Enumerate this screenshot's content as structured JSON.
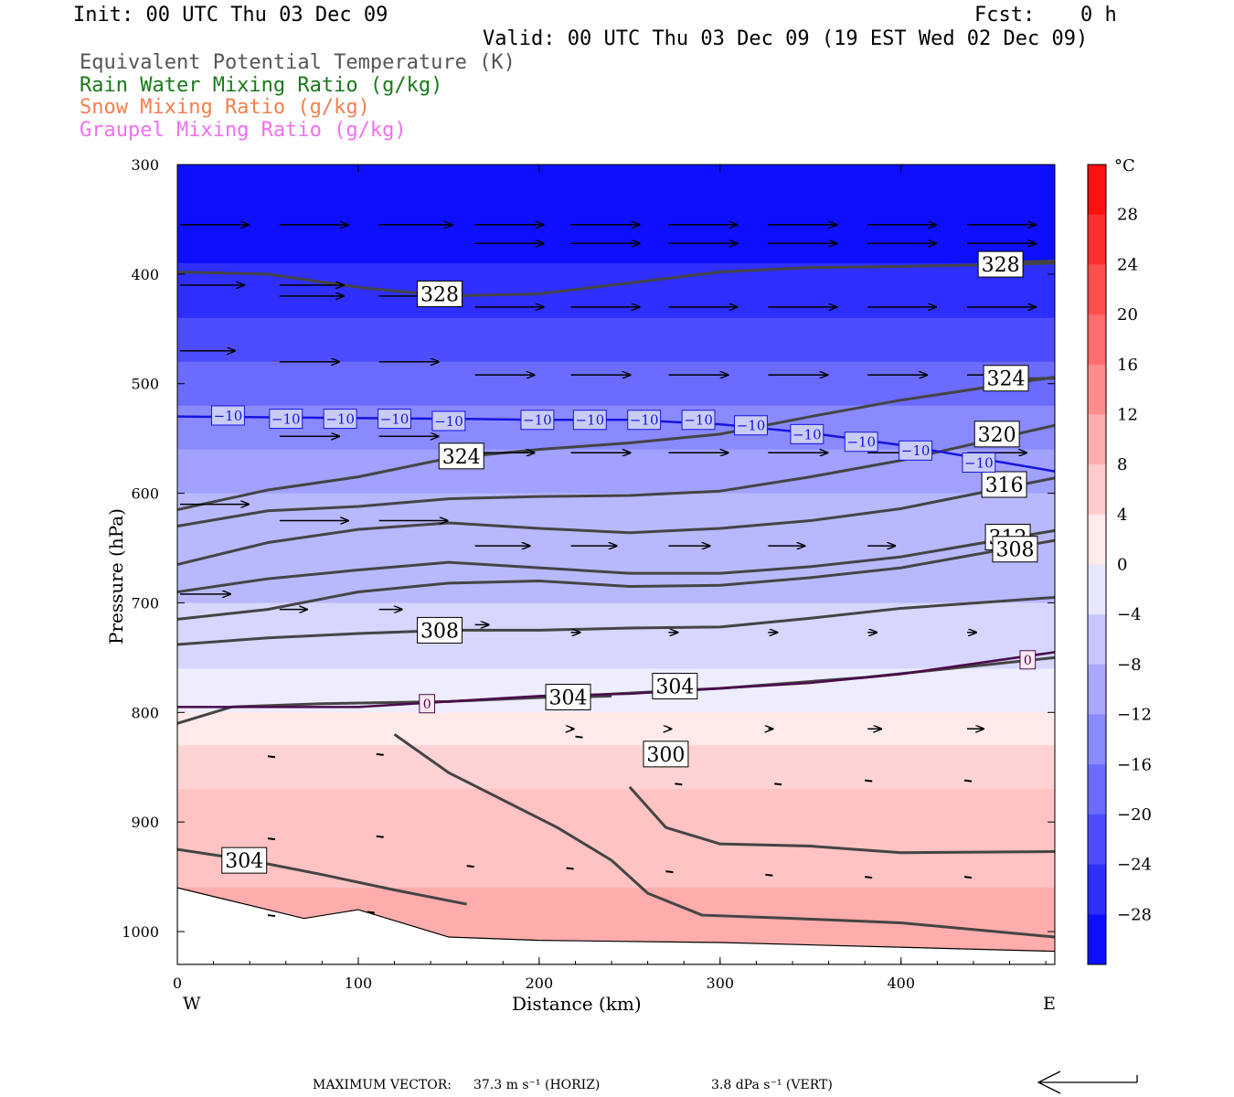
{
  "header": {
    "init": "Init: 00 UTC Thu 03 Dec 09",
    "fcst_label": "Fcst:",
    "fcst_value": "0 h",
    "valid": "Valid: 00 UTC Thu 03 Dec 09 (19 EST Wed 02 Dec 09)"
  },
  "legend": [
    {
      "label": "Equivalent Potential Temperature (K)",
      "color": "#555555"
    },
    {
      "label": "Rain Water Mixing Ratio (g/kg)",
      "color": "#1a7a1a"
    },
    {
      "label": "Snow Mixing Ratio (g/kg)",
      "color": "#f08050"
    },
    {
      "label": "Graupel Mixing Ratio (g/kg)",
      "color": "#f070f0"
    }
  ],
  "chart_data": {
    "type": "cross-section",
    "xlabel": "Distance (km)",
    "ylabel": "Pressure (hPa)",
    "x_range": [
      0,
      485
    ],
    "y_range": [
      300,
      1030
    ],
    "x_ticks": [
      0,
      100,
      200,
      300,
      400
    ],
    "y_ticks": [
      300,
      400,
      500,
      600,
      700,
      800,
      900,
      1000
    ],
    "x_end_labels": {
      "left": "W",
      "right": "E"
    },
    "colorbar": {
      "unit": "°C",
      "tick_labels": [
        "28",
        "24",
        "20",
        "16",
        "12",
        "8",
        "4",
        "0",
        "−4",
        "−8",
        "−12",
        "−16",
        "−20",
        "−24",
        "−28"
      ],
      "ticks": [
        28,
        24,
        20,
        16,
        12,
        8,
        4,
        0,
        -4,
        -8,
        -12,
        -16,
        -20,
        -24,
        -28
      ],
      "range": [
        -32,
        32
      ]
    },
    "temperature_fill": [
      {
        "p_top": 300,
        "p_bot": 390,
        "t": -30
      },
      {
        "p_top": 390,
        "p_bot": 440,
        "t": -26
      },
      {
        "p_top": 440,
        "p_bot": 480,
        "t": -22
      },
      {
        "p_top": 480,
        "p_bot": 520,
        "t": -18
      },
      {
        "p_top": 520,
        "p_bot": 560,
        "t": -14
      },
      {
        "p_top": 560,
        "p_bot": 600,
        "t": -11
      },
      {
        "p_top": 600,
        "p_bot": 700,
        "t": -8
      },
      {
        "p_top": 700,
        "p_bot": 760,
        "t": -4
      },
      {
        "p_top": 760,
        "p_bot": 800,
        "t": -1
      },
      {
        "p_top": 800,
        "p_bot": 830,
        "t": 2
      },
      {
        "p_top": 830,
        "p_bot": 870,
        "t": 5
      },
      {
        "p_top": 870,
        "p_bot": 960,
        "t": 7
      },
      {
        "p_top": 960,
        "p_bot": 1030,
        "t": 10
      }
    ],
    "theta_e_contours": [
      {
        "value": "328",
        "points": [
          [
            0,
            398
          ],
          [
            50,
            400
          ],
          [
            100,
            412
          ],
          [
            150,
            420
          ],
          [
            200,
            418
          ],
          [
            250,
            408
          ],
          [
            300,
            398
          ],
          [
            350,
            394
          ],
          [
            400,
            393
          ],
          [
            485,
            390
          ]
        ],
        "label_at": [
          145,
          418
        ]
      },
      {
        "value": "328",
        "points": [
          [
            445,
            390
          ],
          [
            485,
            388
          ]
        ],
        "label_at": [
          455,
          391
        ]
      },
      {
        "value": "324",
        "points": [
          [
            0,
            615
          ],
          [
            50,
            597
          ],
          [
            100,
            585
          ],
          [
            150,
            568
          ],
          [
            200,
            560
          ],
          [
            250,
            554
          ],
          [
            300,
            546
          ],
          [
            350,
            530
          ],
          [
            400,
            515
          ],
          [
            485,
            494
          ]
        ],
        "label_at": [
          157,
          566
        ]
      },
      {
        "value": "324",
        "points": [
          [
            455,
            496
          ],
          [
            485,
            495
          ]
        ],
        "label_at": [
          458,
          495
        ]
      },
      {
        "value": "320",
        "points": [
          [
            0,
            630
          ],
          [
            50,
            616
          ],
          [
            100,
            612
          ],
          [
            150,
            605
          ],
          [
            200,
            603
          ],
          [
            250,
            602
          ],
          [
            300,
            598
          ],
          [
            350,
            585
          ],
          [
            400,
            570
          ],
          [
            485,
            538
          ]
        ],
        "label_at": [
          453,
          546
        ]
      },
      {
        "value": "316",
        "points": [
          [
            0,
            665
          ],
          [
            50,
            645
          ],
          [
            100,
            633
          ],
          [
            150,
            627
          ],
          [
            200,
            632
          ],
          [
            250,
            636
          ],
          [
            300,
            632
          ],
          [
            350,
            625
          ],
          [
            400,
            614
          ],
          [
            485,
            586
          ]
        ],
        "label_at": [
          457,
          592
        ]
      },
      {
        "value": "312",
        "points": [
          [
            0,
            690
          ],
          [
            50,
            678
          ],
          [
            100,
            670
          ],
          [
            150,
            663
          ],
          [
            200,
            668
          ],
          [
            250,
            673
          ],
          [
            300,
            673
          ],
          [
            350,
            667
          ],
          [
            400,
            658
          ],
          [
            485,
            634
          ]
        ],
        "label_at": [
          459,
          640
        ]
      },
      {
        "value": "308",
        "points": [
          [
            0,
            715
          ],
          [
            50,
            706
          ],
          [
            100,
            690
          ],
          [
            150,
            682
          ],
          [
            200,
            680
          ],
          [
            250,
            685
          ],
          [
            300,
            684
          ],
          [
            350,
            677
          ],
          [
            400,
            668
          ],
          [
            485,
            643
          ]
        ],
        "label_at": [
          463,
          651
        ]
      },
      {
        "value": "308",
        "points": [
          [
            0,
            738
          ],
          [
            50,
            732
          ],
          [
            100,
            728
          ],
          [
            150,
            725
          ],
          [
            200,
            725
          ],
          [
            250,
            723
          ],
          [
            300,
            722
          ],
          [
            350,
            714
          ],
          [
            400,
            705
          ],
          [
            485,
            695
          ]
        ],
        "label_at": [
          145,
          725
        ]
      },
      {
        "value": "304",
        "points": [
          [
            0,
            810
          ],
          [
            30,
            795
          ],
          [
            80,
            792
          ],
          [
            150,
            790
          ],
          [
            220,
            785
          ],
          [
            300,
            778
          ],
          [
            380,
            768
          ],
          [
            485,
            750
          ]
        ],
        "label_at": [
          275,
          776
        ]
      },
      {
        "value": "304",
        "points": [
          [
            220,
            786
          ],
          [
            240,
            785
          ]
        ],
        "label_at": [
          216,
          786
        ]
      },
      {
        "value": "304",
        "points": [
          [
            0,
            925
          ],
          [
            40,
            935
          ],
          [
            80,
            948
          ],
          [
            120,
            962
          ],
          [
            160,
            975
          ]
        ],
        "label_at": [
          37,
          935
        ]
      },
      {
        "value": "300",
        "points": [
          [
            120,
            820
          ],
          [
            150,
            855
          ],
          [
            180,
            880
          ],
          [
            210,
            905
          ],
          [
            240,
            935
          ],
          [
            260,
            965
          ],
          [
            290,
            985
          ],
          [
            340,
            988
          ],
          [
            400,
            992
          ],
          [
            485,
            1005
          ]
        ],
        "label_at": [
          270,
          838
        ]
      },
      {
        "value": "300",
        "points": [
          [
            250,
            868
          ],
          [
            270,
            905
          ],
          [
            300,
            920
          ],
          [
            350,
            922
          ],
          [
            400,
            928
          ],
          [
            485,
            927
          ]
        ],
        "label_at": [
          270,
          838
        ]
      }
    ],
    "zero_isotherm": {
      "value": "0",
      "points": [
        [
          0,
          795
        ],
        [
          100,
          795
        ],
        [
          150,
          790
        ],
        [
          200,
          785
        ],
        [
          250,
          783
        ],
        [
          300,
          778
        ],
        [
          350,
          773
        ],
        [
          400,
          765
        ],
        [
          485,
          745
        ]
      ],
      "labels_at": [
        [
          138,
          792
        ],
        [
          470,
          752
        ]
      ]
    },
    "minus10_isotherm": {
      "value": "−10",
      "points": [
        [
          0,
          530
        ],
        [
          150,
          532
        ],
        [
          200,
          533
        ],
        [
          250,
          533
        ],
        [
          300,
          537
        ],
        [
          350,
          545
        ],
        [
          400,
          556
        ],
        [
          485,
          580
        ]
      ],
      "labels_at": [
        [
          28,
          529
        ],
        [
          60,
          532
        ],
        [
          90,
          532
        ],
        [
          120,
          532
        ],
        [
          150,
          534
        ],
        [
          199,
          533
        ],
        [
          228,
          533
        ],
        [
          258,
          533
        ],
        [
          288,
          533
        ],
        [
          317,
          538
        ],
        [
          348,
          546
        ],
        [
          378,
          553
        ],
        [
          408,
          561
        ],
        [
          443,
          572
        ]
      ]
    },
    "wind_vectors_max": {
      "label": "MAXIMUM VECTOR:",
      "horiz": "37.3 m s⁻¹ (HORIZ)",
      "vert": "3.8 dPa s⁻¹ (VERT)"
    }
  }
}
